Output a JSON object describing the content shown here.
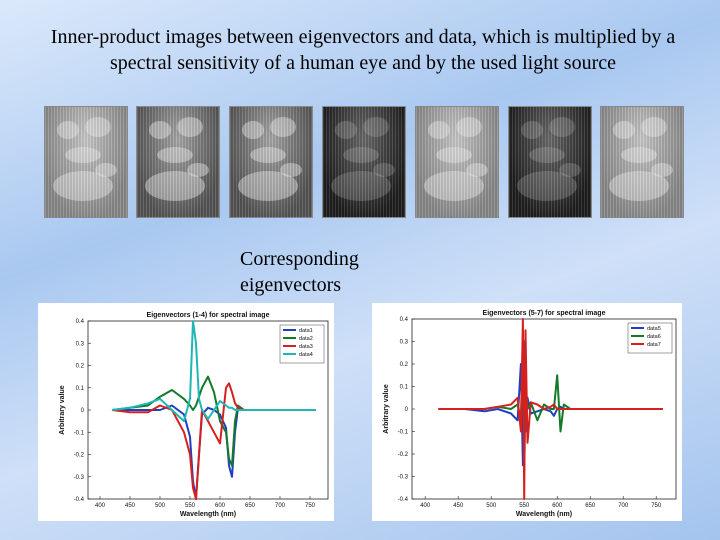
{
  "slide": {
    "title": "Inner-product images between eigenvectors and data, which is multiplied by a spectral sensitivity of a human eye and by the used light source",
    "caption_line1": "Corresponding",
    "caption_line2": "eigenvectors"
  },
  "images": [
    {
      "name": "inner-product-image-1",
      "tone": "light"
    },
    {
      "name": "inner-product-image-2",
      "tone": "medium"
    },
    {
      "name": "inner-product-image-3",
      "tone": "medium"
    },
    {
      "name": "inner-product-image-4",
      "tone": "dark"
    },
    {
      "name": "inner-product-image-5",
      "tone": "light"
    },
    {
      "name": "inner-product-image-6",
      "tone": "dark"
    },
    {
      "name": "inner-product-image-7",
      "tone": "light"
    }
  ],
  "chart_data": [
    {
      "type": "line",
      "title": "Eigenvectors (1-4) for spectral image",
      "xlabel": "Wavelength (nm)",
      "ylabel": "Arbitrary value",
      "xlim": [
        380,
        780
      ],
      "ylim": [
        -0.4,
        0.4
      ],
      "xticks": [
        "400",
        "450",
        "500",
        "550",
        "600",
        "650",
        "700",
        "750"
      ],
      "yticks": [
        "0.4",
        "0.3",
        "0.2",
        "0.1",
        "0",
        "-0.1",
        "-0.2",
        "-0.3",
        "-0.4"
      ],
      "legend_position": "top-right",
      "x": [
        420,
        450,
        480,
        500,
        520,
        540,
        550,
        555,
        560,
        565,
        570,
        580,
        590,
        600,
        610,
        615,
        620,
        625,
        630,
        640,
        660,
        700,
        760
      ],
      "series": [
        {
          "name": "data1",
          "color": "#1f3fbf",
          "values": [
            0,
            0,
            0,
            0,
            0.02,
            -0.02,
            -0.12,
            -0.32,
            -0.4,
            -0.2,
            -0.02,
            0.01,
            0.0,
            -0.02,
            -0.08,
            -0.25,
            -0.3,
            -0.1,
            0.01,
            0,
            0,
            0,
            0
          ]
        },
        {
          "name": "data2",
          "color": "#137a2a",
          "values": [
            0,
            0.01,
            0.02,
            0.06,
            0.09,
            0.05,
            0.02,
            0.0,
            0.02,
            0.06,
            0.1,
            0.15,
            0.08,
            -0.05,
            -0.1,
            -0.22,
            -0.25,
            -0.05,
            0.02,
            0,
            0,
            0,
            0
          ]
        },
        {
          "name": "data3",
          "color": "#d62020",
          "values": [
            0,
            -0.01,
            -0.01,
            0.02,
            0.0,
            -0.1,
            -0.2,
            -0.35,
            -0.4,
            -0.2,
            0.0,
            -0.05,
            -0.1,
            -0.15,
            0.1,
            0.12,
            0.08,
            0.03,
            0.01,
            0,
            0,
            0,
            0
          ]
        },
        {
          "name": "data4",
          "color": "#20b6b6",
          "values": [
            0,
            0.01,
            0.03,
            0.05,
            0.0,
            -0.05,
            0.05,
            0.4,
            0.3,
            0.05,
            0.0,
            -0.04,
            0.0,
            0.04,
            0.02,
            0.01,
            0.01,
            0.0,
            0,
            0,
            0,
            0,
            0
          ]
        }
      ]
    },
    {
      "type": "line",
      "title": "Eigenvectors (5-7) for spectral image",
      "xlabel": "Wavelength (nm)",
      "ylabel": "Arbitrary value",
      "xlim": [
        380,
        780
      ],
      "ylim": [
        -0.4,
        0.4
      ],
      "xticks": [
        "400",
        "450",
        "500",
        "550",
        "600",
        "650",
        "700",
        "750"
      ],
      "yticks": [
        "0.4",
        "0.3",
        "0.2",
        "0.1",
        "0",
        "-0.1",
        "-0.2",
        "-0.3",
        "-0.4"
      ],
      "legend_position": "top-right",
      "x": [
        420,
        460,
        490,
        510,
        530,
        540,
        545,
        548,
        550,
        552,
        555,
        560,
        570,
        580,
        590,
        595,
        600,
        605,
        610,
        620,
        640,
        700,
        760
      ],
      "series": [
        {
          "name": "data5",
          "color": "#1f3fbf",
          "values": [
            0,
            0,
            -0.01,
            0.0,
            -0.02,
            -0.05,
            0.2,
            -0.25,
            0.3,
            -0.1,
            0.05,
            -0.02,
            -0.01,
            0.0,
            -0.01,
            -0.03,
            0.0,
            0.01,
            0.0,
            0,
            0,
            0,
            0
          ]
        },
        {
          "name": "data6",
          "color": "#137a2a",
          "values": [
            0,
            0,
            0.0,
            0.01,
            0.0,
            0.02,
            -0.05,
            0.32,
            -0.28,
            0.1,
            0.0,
            0.03,
            -0.05,
            0.02,
            0.0,
            0.0,
            0.15,
            -0.1,
            0.02,
            0,
            0,
            0,
            0
          ]
        },
        {
          "name": "data7",
          "color": "#d62020",
          "values": [
            0,
            0,
            0.0,
            0.01,
            0.02,
            0.05,
            -0.1,
            0.4,
            -0.4,
            0.35,
            -0.15,
            0.03,
            0.02,
            0.0,
            0.01,
            0.02,
            0.0,
            0.0,
            0.0,
            0,
            0,
            0,
            0
          ]
        }
      ]
    }
  ]
}
